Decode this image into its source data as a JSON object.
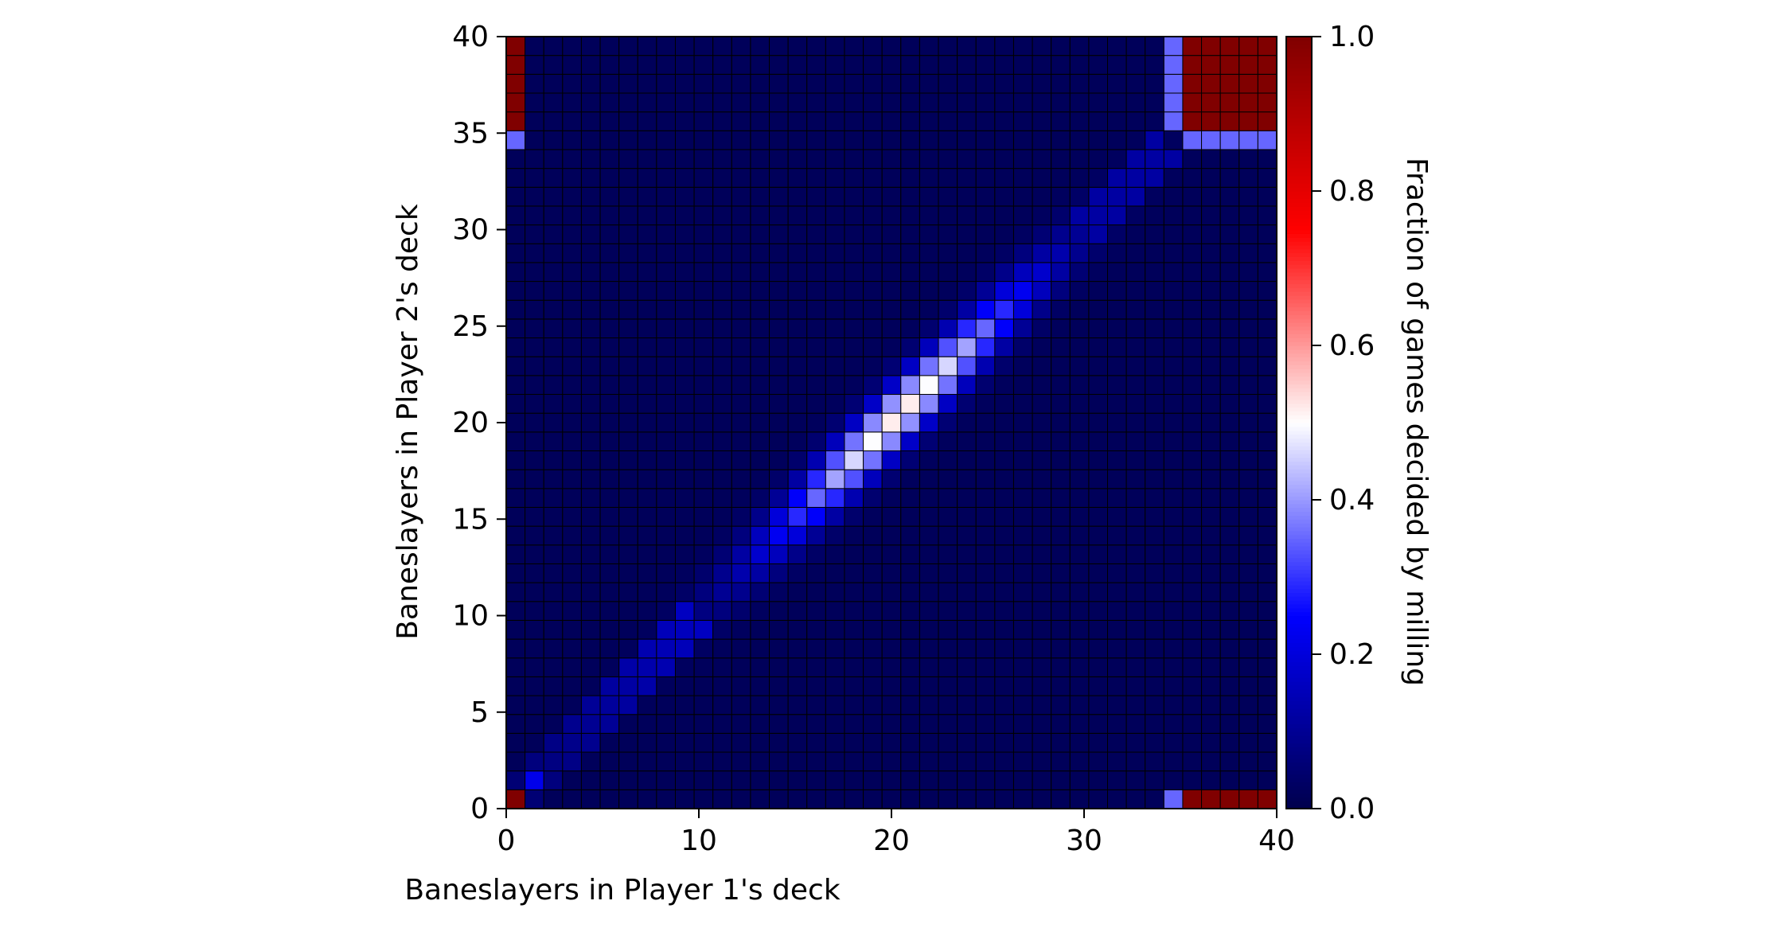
{
  "chart_data": {
    "type": "heatmap",
    "title": "",
    "xlabel": "Baneslayers in Player 1's deck",
    "ylabel": "Baneslayers in Player 2's deck",
    "colorbar_label": "Fraction of games decided by milling",
    "xlim": [
      0,
      40
    ],
    "ylim": [
      0,
      40
    ],
    "x_ticks": [
      0,
      10,
      20,
      30,
      40
    ],
    "y_ticks": [
      0,
      5,
      10,
      15,
      20,
      25,
      30,
      35,
      40
    ],
    "colorbar_ticks": [
      "0.0",
      "0.2",
      "0.4",
      "0.6",
      "0.8",
      "1.0"
    ],
    "colorbar_range": [
      0,
      1
    ],
    "colormap": "seismic",
    "grid_rows": 41,
    "grid_cols": 41,
    "value_model": {
      "description_of_cells": "value(i,j) for P1 count i and P2 count j",
      "diagonal_peak_value": 0.5,
      "diagonal_peak_at": 20.5,
      "diagonal_width": 1.3,
      "corner_block_value": 1.0,
      "corner_block_min": 36,
      "edge_row_value": 0.35,
      "edge_row_index": 35,
      "origin_value": 1.0,
      "background_value": 0.02
    },
    "colors": {
      "edge": "#000000",
      "background": "#ffffff"
    }
  }
}
